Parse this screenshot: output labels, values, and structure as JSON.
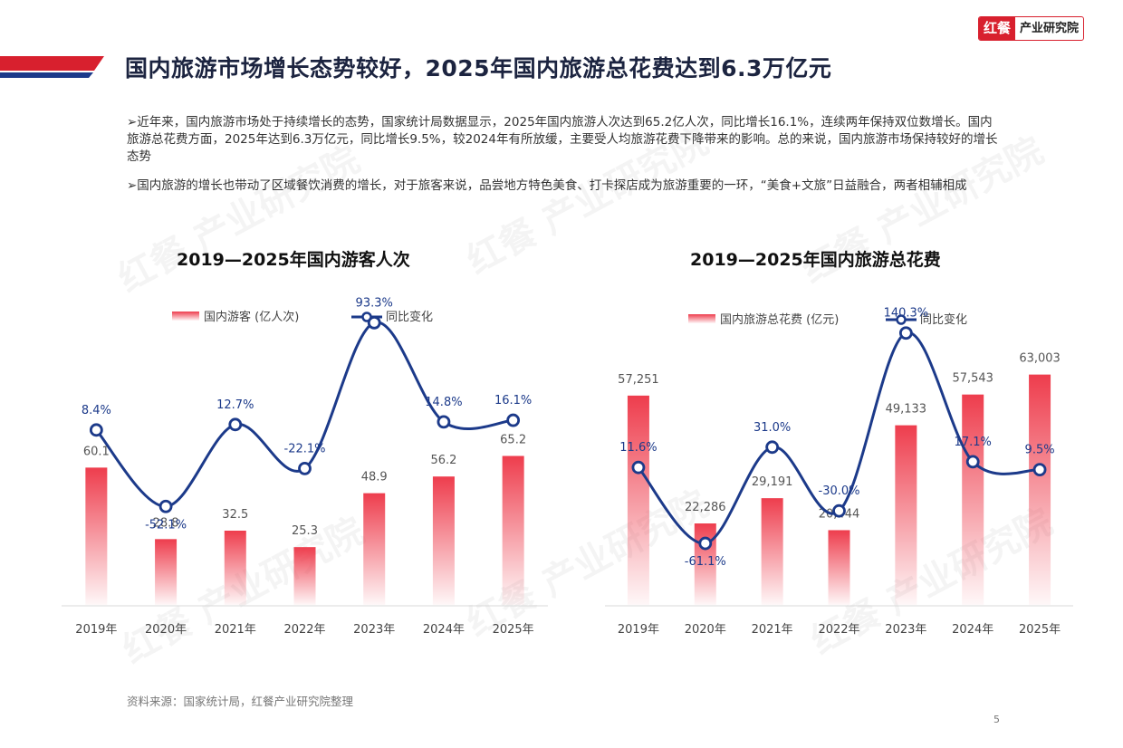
{
  "logo": {
    "mark": "红餐",
    "text": "产业研究院"
  },
  "title": "国内旅游市场增长态势较好，2025年国内旅游总花费达到6.3万亿元",
  "paragraphs": [
    "➢近年来，国内旅游市场处于持续增长的态势，国家统计局数据显示，2025年国内旅游人次达到65.2亿人次，同比增长16.1%，连续两年保持双位数增长。国内旅游总花费方面，2025年达到6.3万亿元，同比增长9.5%，较2024年有所放缓，主要受人均旅游花费下降带来的影响。总的来说，国内旅游市场保持较好的增长态势",
    "➢国内旅游的增长也带动了区域餐饮消费的增长，对于旅客来说，品尝地方特色美食、打卡探店成为旅游重要的一环，“美食+文旅”日益融合，两者相辅相成"
  ],
  "watermark": "红餐 产业研究院",
  "chart_data": [
    {
      "type": "bar",
      "title": "2019—2025年国内游客人次",
      "categories": [
        "2019年",
        "2020年",
        "2021年",
        "2022年",
        "2023年",
        "2024年",
        "2025年"
      ],
      "series": [
        {
          "name": "国内游客 (亿人次)",
          "type": "bar",
          "values": [
            60.1,
            28.8,
            32.5,
            25.3,
            48.9,
            56.2,
            65.2
          ],
          "labels": [
            "60.1",
            "28.8",
            "32.5",
            "25.3",
            "48.9",
            "56.2",
            "65.2"
          ]
        },
        {
          "name": "同比变化",
          "type": "line",
          "values": [
            8.4,
            -52.1,
            12.7,
            -22.1,
            93.3,
            14.8,
            16.1
          ],
          "labels": [
            "8.4%",
            "-52.1%",
            "12.7%",
            "-22.1%",
            "93.3%",
            "14.8%",
            "16.1%"
          ]
        }
      ],
      "bar_ylim": [
        0,
        130
      ],
      "line_ylim": [
        -130,
        105
      ],
      "colors": {
        "bar": "#ee3d4d",
        "line": "#1c3a8a"
      }
    },
    {
      "type": "bar",
      "title": "2019—2025年国内旅游总花费",
      "categories": [
        "2019年",
        "2020年",
        "2021年",
        "2022年",
        "2023年",
        "2024年",
        "2025年"
      ],
      "series": [
        {
          "name": "国内旅游总花费 (亿元)",
          "type": "bar",
          "values": [
            57251,
            22286,
            29191,
            20444,
            49133,
            57543,
            63003
          ],
          "labels": [
            "57,251",
            "22,286",
            "29,191",
            "20,444",
            "49,133",
            "57,543",
            "63,003"
          ]
        },
        {
          "name": "同比变化",
          "type": "line",
          "values": [
            11.6,
            -61.1,
            31.0,
            -30.0,
            140.3,
            17.1,
            9.5
          ],
          "labels": [
            "11.6%",
            "-61.1%",
            "31.0%",
            "-30.0%",
            "140.3%",
            "17.1%",
            "9.5%"
          ]
        }
      ],
      "bar_ylim": [
        0,
        80000
      ],
      "line_ylim": [
        -120,
        160
      ],
      "colors": {
        "bar": "#ee3d4d",
        "line": "#1c3a8a"
      }
    }
  ],
  "source": "资料来源：国家统计局，红餐产业研究院整理",
  "page_number": "5"
}
